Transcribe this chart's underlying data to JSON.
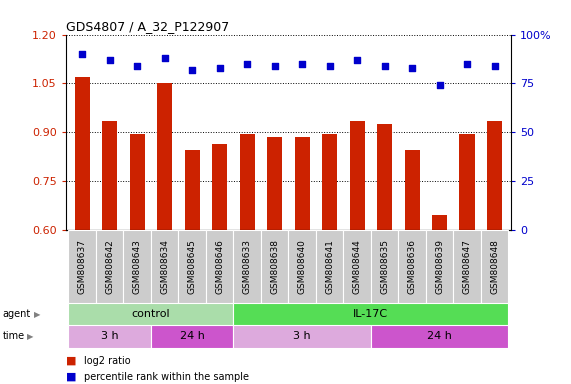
{
  "title": "GDS4807 / A_32_P122907",
  "samples": [
    "GSM808637",
    "GSM808642",
    "GSM808643",
    "GSM808634",
    "GSM808645",
    "GSM808646",
    "GSM808633",
    "GSM808638",
    "GSM808640",
    "GSM808641",
    "GSM808644",
    "GSM808635",
    "GSM808636",
    "GSM808639",
    "GSM808647",
    "GSM808648"
  ],
  "log2_ratio": [
    1.07,
    0.935,
    0.895,
    1.05,
    0.845,
    0.865,
    0.895,
    0.885,
    0.885,
    0.895,
    0.935,
    0.925,
    0.845,
    0.645,
    0.895,
    0.935
  ],
  "percentile": [
    90,
    87,
    84,
    88,
    82,
    83,
    85,
    84,
    85,
    84,
    87,
    84,
    83,
    74,
    85,
    84
  ],
  "ylim_left": [
    0.6,
    1.2
  ],
  "ylim_right": [
    0,
    100
  ],
  "yticks_left": [
    0.6,
    0.75,
    0.9,
    1.05,
    1.2
  ],
  "yticks_right": [
    0,
    25,
    50,
    75,
    100
  ],
  "bar_color": "#cc2200",
  "dot_color": "#0000cc",
  "bg_color": "#ffffff",
  "agent_groups": [
    {
      "label": "control",
      "start": 0,
      "end": 6,
      "color": "#aaddaa"
    },
    {
      "label": "IL-17C",
      "start": 6,
      "end": 16,
      "color": "#55dd55"
    }
  ],
  "time_groups": [
    {
      "label": "3 h",
      "start": 0,
      "end": 3,
      "color": "#ddaadd"
    },
    {
      "label": "24 h",
      "start": 3,
      "end": 6,
      "color": "#cc55cc"
    },
    {
      "label": "3 h",
      "start": 6,
      "end": 11,
      "color": "#ddaadd"
    },
    {
      "label": "24 h",
      "start": 11,
      "end": 16,
      "color": "#cc55cc"
    }
  ],
  "legend_items": [
    {
      "label": "log2 ratio",
      "color": "#cc2200"
    },
    {
      "label": "percentile rank within the sample",
      "color": "#0000cc"
    }
  ]
}
